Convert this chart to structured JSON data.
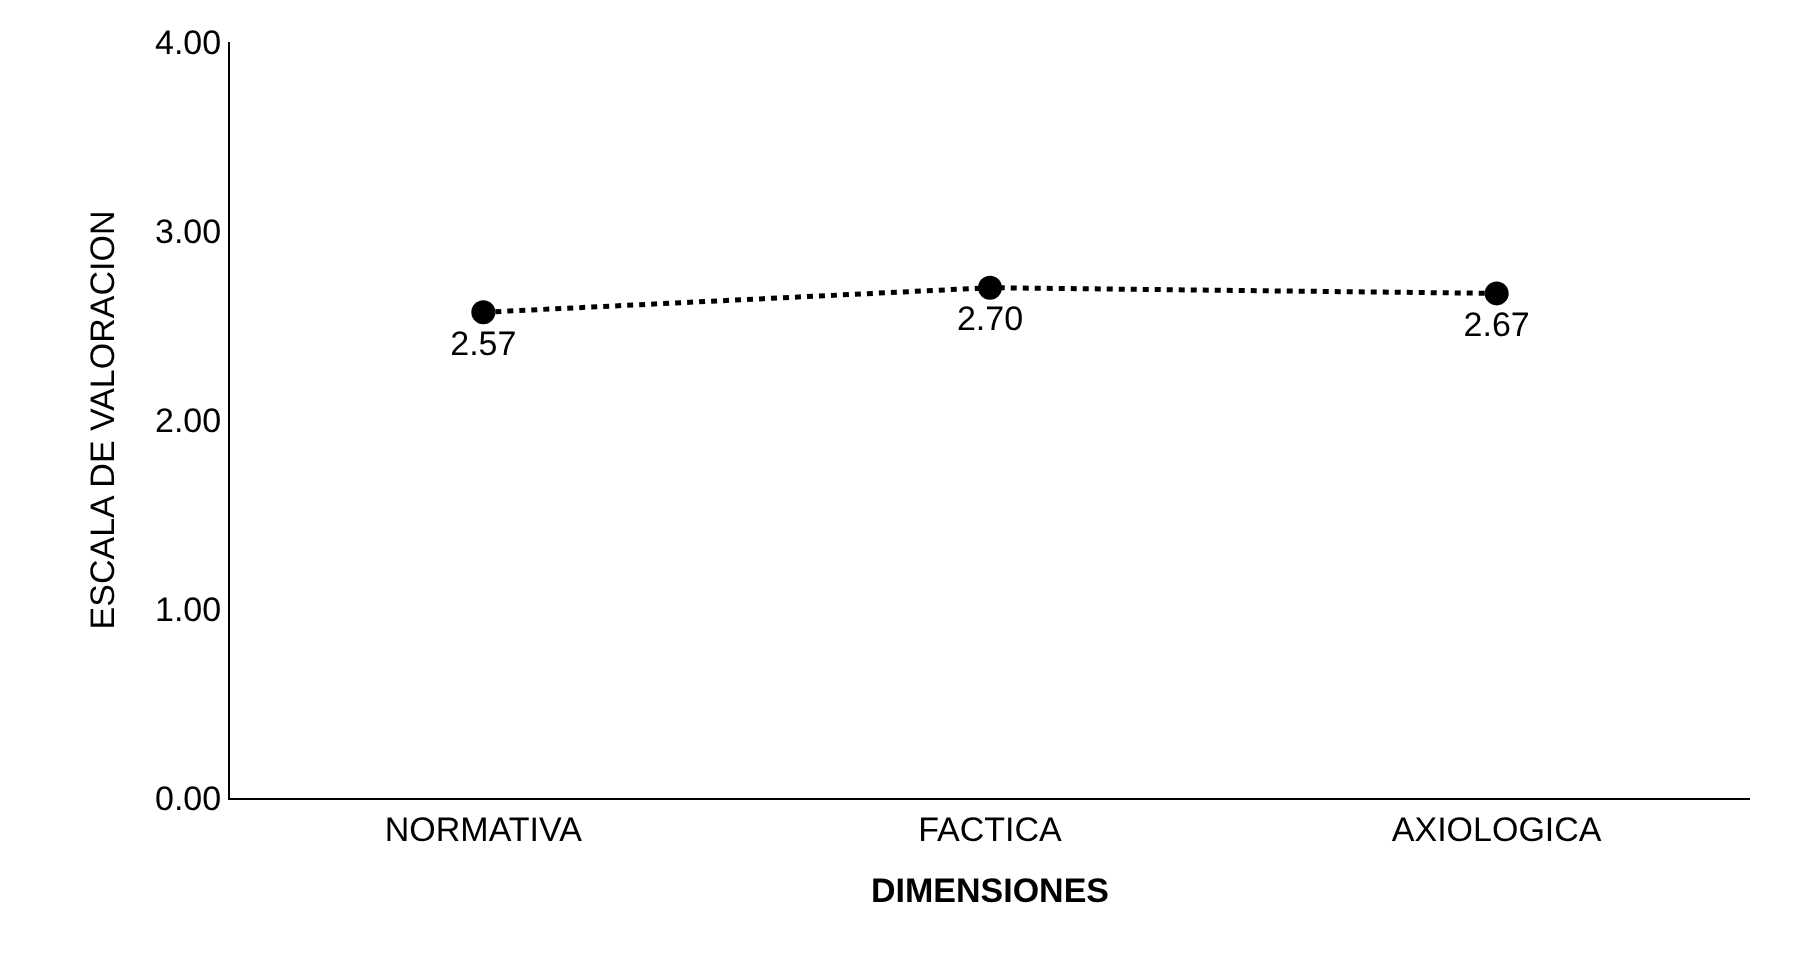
{
  "chart_data": {
    "type": "line",
    "xlabel": "DIMENSIONES",
    "ylabel": "ESCALA DE VALORACION",
    "categories": [
      "NORMATIVA",
      "FACTICA",
      "AXIOLOGICA"
    ],
    "series": [
      {
        "color": "#000000",
        "values": [
          2.57,
          2.7,
          2.67
        ],
        "value_labels": [
          "2.57",
          "2.70",
          "2.67"
        ]
      }
    ],
    "ylim": [
      0,
      4
    ],
    "yticks": [
      {
        "value": 0,
        "label": "0.00"
      },
      {
        "value": 1,
        "label": "1.00"
      },
      {
        "value": 2,
        "label": "2.00"
      },
      {
        "value": 3,
        "label": "3.00"
      },
      {
        "value": 4,
        "label": "4.00"
      }
    ],
    "marker": "circle",
    "line_style": "dotted"
  }
}
